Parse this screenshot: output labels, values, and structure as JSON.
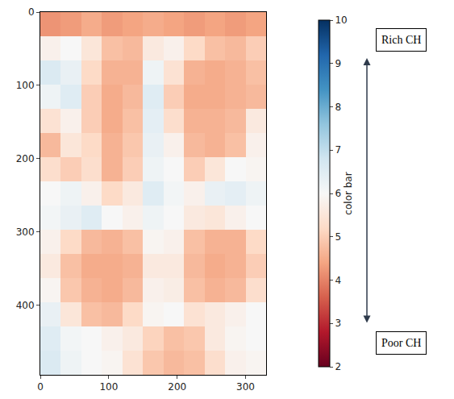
{
  "chart_data": {
    "type": "heatmap",
    "x": [
      15,
      45,
      75,
      105,
      135,
      165,
      195,
      225,
      255,
      285,
      315
    ],
    "y": [
      16.5,
      49.5,
      82.5,
      115.5,
      148.5,
      181.5,
      214.5,
      247.5,
      280.5,
      313.5,
      346.5,
      379.5,
      412.5,
      445.5,
      478.5
    ],
    "z": [
      [
        4.2,
        4.3,
        4.5,
        4.3,
        4.4,
        4.5,
        4.4,
        4.3,
        4.4,
        4.3,
        4.4
      ],
      [
        5.8,
        6.0,
        5.5,
        4.8,
        4.7,
        5.6,
        5.8,
        5.2,
        4.8,
        4.7,
        5.0
      ],
      [
        6.6,
        6.3,
        5.2,
        4.6,
        4.6,
        6.2,
        5.4,
        4.6,
        4.5,
        4.6,
        4.8
      ],
      [
        6.2,
        6.5,
        5.0,
        4.5,
        4.7,
        6.5,
        5.0,
        4.5,
        4.5,
        4.6,
        4.7
      ],
      [
        5.4,
        5.8,
        5.0,
        4.5,
        4.8,
        6.4,
        5.3,
        4.6,
        4.6,
        4.7,
        5.6
      ],
      [
        4.7,
        5.5,
        5.2,
        4.6,
        4.9,
        6.3,
        5.8,
        4.7,
        4.6,
        4.8,
        5.8
      ],
      [
        5.3,
        5.0,
        5.3,
        4.6,
        5.0,
        6.2,
        6.0,
        5.0,
        5.5,
        6.0,
        5.9
      ],
      [
        6.0,
        6.2,
        5.8,
        5.2,
        5.6,
        6.5,
        6.1,
        5.8,
        6.3,
        6.4,
        6.2
      ],
      [
        6.1,
        6.3,
        6.5,
        6.0,
        5.8,
        6.2,
        6.0,
        5.6,
        5.5,
        5.8,
        6.0
      ],
      [
        5.8,
        5.2,
        4.7,
        4.6,
        4.8,
        5.9,
        5.8,
        4.8,
        4.6,
        4.6,
        5.2
      ],
      [
        5.6,
        4.8,
        4.5,
        4.5,
        4.6,
        5.6,
        5.6,
        4.7,
        4.5,
        4.6,
        5.0
      ],
      [
        5.9,
        4.9,
        4.6,
        4.5,
        4.7,
        5.8,
        5.7,
        4.8,
        4.6,
        4.7,
        5.3
      ],
      [
        6.3,
        5.5,
        4.8,
        4.7,
        5.2,
        5.9,
        6.0,
        5.4,
        5.6,
        5.8,
        6.0
      ],
      [
        6.5,
        6.1,
        6.0,
        5.8,
        5.6,
        5.1,
        4.8,
        4.9,
        5.6,
        5.9,
        6.0
      ],
      [
        6.6,
        6.2,
        6.0,
        5.9,
        5.4,
        4.9,
        4.7,
        4.8,
        5.3,
        5.8,
        5.9
      ]
    ],
    "xlim": [
      0,
      330
    ],
    "ylim": [
      495,
      0
    ],
    "xticks": [
      0,
      100,
      200,
      300
    ],
    "yticks": [
      0,
      100,
      200,
      300,
      400
    ],
    "colorbar_title": "color bar",
    "colorbar_range": [
      2,
      10
    ],
    "colorbar_ticks": [
      2,
      3,
      4,
      5,
      6,
      7,
      8,
      9,
      10
    ],
    "annotations": [
      "Rich CH",
      "Poor CH"
    ]
  }
}
